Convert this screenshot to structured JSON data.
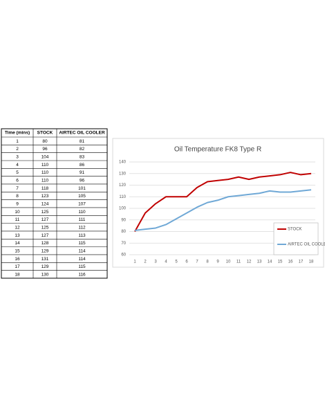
{
  "table": {
    "headers": [
      "Time (mins)",
      "STOCK",
      "AIRTEC OIL COOLER"
    ],
    "rows": [
      [
        1,
        80,
        81
      ],
      [
        2,
        96,
        82
      ],
      [
        3,
        104,
        83
      ],
      [
        4,
        110,
        86
      ],
      [
        5,
        110,
        91
      ],
      [
        6,
        110,
        96
      ],
      [
        7,
        118,
        101
      ],
      [
        8,
        123,
        105
      ],
      [
        9,
        124,
        107
      ],
      [
        10,
        125,
        110
      ],
      [
        11,
        127,
        111
      ],
      [
        12,
        125,
        112
      ],
      [
        13,
        127,
        113
      ],
      [
        14,
        128,
        115
      ],
      [
        15,
        129,
        114
      ],
      [
        16,
        131,
        114
      ],
      [
        17,
        129,
        115
      ],
      [
        18,
        130,
        116
      ]
    ]
  },
  "chart_data": {
    "type": "line",
    "title": "Oil Temperature FK8 Type R",
    "x": [
      1,
      2,
      3,
      4,
      5,
      6,
      7,
      8,
      9,
      10,
      11,
      12,
      13,
      14,
      15,
      16,
      17,
      18
    ],
    "xlim": [
      1,
      18
    ],
    "series": [
      {
        "name": "STOCK",
        "color": "#c00000",
        "values": [
          80,
          96,
          104,
          110,
          110,
          110,
          118,
          123,
          124,
          125,
          127,
          125,
          127,
          128,
          129,
          131,
          129,
          130
        ]
      },
      {
        "name": "AIRTEC OIL COOLER",
        "color": "#6fa8d6",
        "values": [
          81,
          82,
          83,
          86,
          91,
          96,
          101,
          105,
          107,
          110,
          111,
          112,
          113,
          115,
          114,
          114,
          115,
          116
        ]
      }
    ],
    "ylim": [
      60,
      140
    ],
    "yticks": [
      60,
      70,
      80,
      90,
      100,
      110,
      120,
      130,
      140
    ],
    "grid": true,
    "legend": "lower right"
  }
}
